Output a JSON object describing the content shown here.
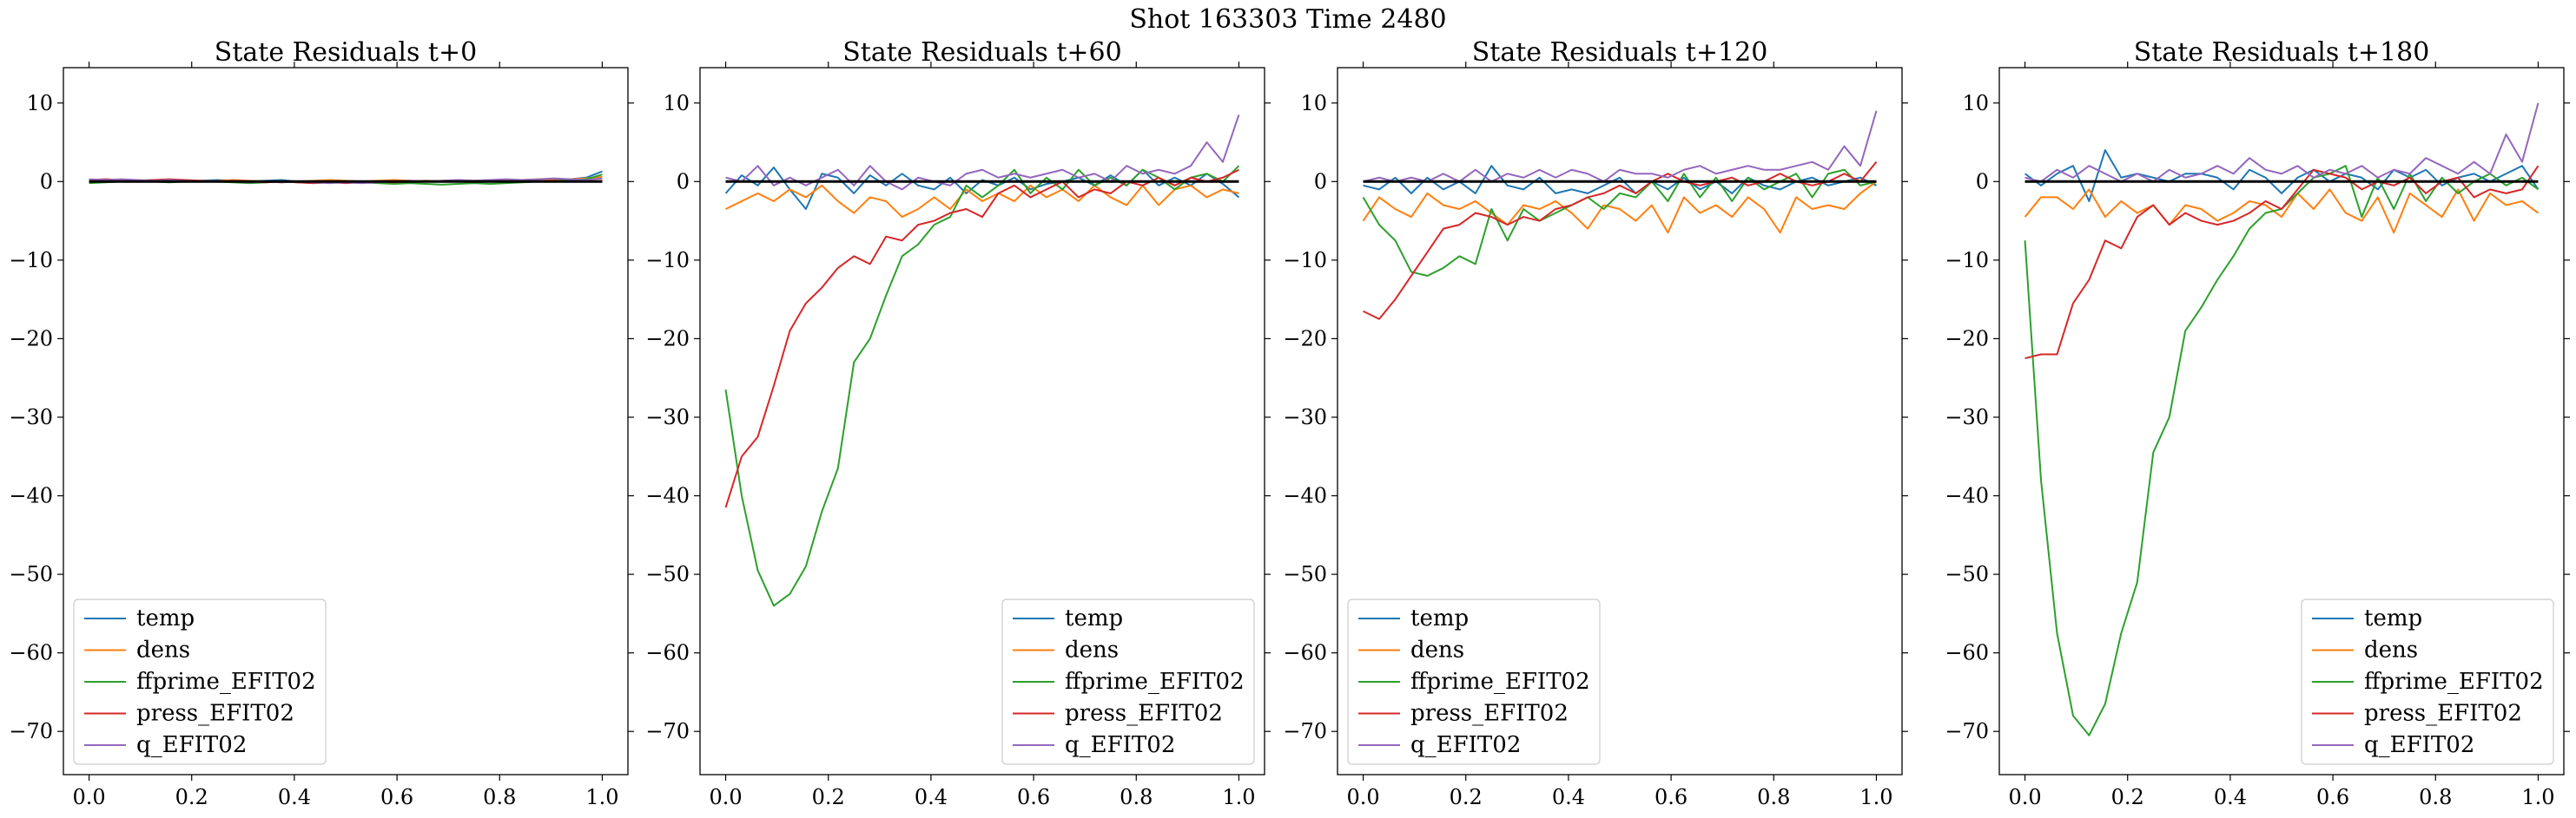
{
  "figure": {
    "suptitle": "Shot 163303   Time 2480"
  },
  "chart_data": [
    {
      "type": "line",
      "title": "State Residuals t+0",
      "xlim": [
        -0.05,
        1.05
      ],
      "ylim": [
        -75.5,
        14.5
      ],
      "xticks": [
        "0.0",
        "0.2",
        "0.4",
        "0.6",
        "0.8",
        "1.0"
      ],
      "yticks": [
        "10",
        "0",
        "−10",
        "−20",
        "−30",
        "−40",
        "−50",
        "−60",
        "−70"
      ],
      "grid": false,
      "legend_position": "lower-left",
      "reference_line": 0,
      "series": [
        {
          "name": "temp",
          "color": "#1f77b4",
          "values": [
            0.1,
            0.0,
            0.2,
            0.1,
            0.2,
            0.1,
            0.0,
            0.1,
            0.2,
            0.1,
            0.0,
            0.1,
            0.2,
            0.0,
            -0.1,
            0.0,
            0.1,
            0.0,
            -0.1,
            0.0,
            0.1,
            0.0,
            0.0,
            0.1,
            0.1,
            0.2,
            0.1,
            0.0,
            0.1,
            0.2,
            0.3,
            0.5,
            1.3
          ]
        },
        {
          "name": "dens",
          "color": "#ff7f0e",
          "values": [
            0.0,
            0.1,
            0.0,
            0.2,
            0.1,
            0.0,
            0.1,
            0.0,
            0.1,
            0.2,
            0.1,
            0.0,
            -0.1,
            0.0,
            0.1,
            0.2,
            0.1,
            0.0,
            0.1,
            0.2,
            0.1,
            0.0,
            0.1,
            0.2,
            0.1,
            0.2,
            0.1,
            0.2,
            0.3,
            0.2,
            0.3,
            0.4,
            0.6
          ]
        },
        {
          "name": "ffprime_EFIT02",
          "color": "#2ca02c",
          "values": [
            -0.2,
            -0.1,
            0.0,
            0.1,
            0.0,
            -0.1,
            0.0,
            0.1,
            0.0,
            -0.1,
            -0.2,
            -0.1,
            0.0,
            -0.1,
            -0.2,
            -0.1,
            0.0,
            -0.1,
            -0.2,
            -0.3,
            -0.2,
            -0.3,
            -0.4,
            -0.3,
            -0.2,
            -0.3,
            -0.2,
            -0.1,
            0.0,
            0.1,
            0.2,
            0.3,
            0.9
          ]
        },
        {
          "name": "press_EFIT02",
          "color": "#d62728",
          "values": [
            0.2,
            0.3,
            0.2,
            0.1,
            0.2,
            0.3,
            0.2,
            0.1,
            0.0,
            0.1,
            0.0,
            -0.1,
            0.0,
            -0.1,
            -0.2,
            -0.1,
            -0.2,
            -0.1,
            0.0,
            -0.1,
            0.0,
            0.1,
            0.0,
            0.1,
            0.0,
            0.1,
            0.0,
            0.1,
            0.0,
            0.1,
            0.0,
            0.0,
            0.1
          ]
        },
        {
          "name": "q_EFIT02",
          "color": "#9467bd",
          "values": [
            0.3,
            0.2,
            0.3,
            0.2,
            0.1,
            0.2,
            0.1,
            0.0,
            0.1,
            0.0,
            -0.1,
            0.0,
            -0.1,
            0.0,
            -0.1,
            -0.2,
            -0.1,
            -0.2,
            -0.1,
            0.0,
            0.1,
            0.0,
            0.1,
            0.2,
            0.1,
            0.2,
            0.3,
            0.2,
            0.3,
            0.4,
            0.3,
            0.2,
            0.4
          ]
        }
      ]
    },
    {
      "type": "line",
      "title": "State Residuals t+60",
      "xlim": [
        -0.05,
        1.05
      ],
      "ylim": [
        -75.5,
        14.5
      ],
      "xticks": [
        "0.0",
        "0.2",
        "0.4",
        "0.6",
        "0.8",
        "1.0"
      ],
      "yticks": [
        "10",
        "0",
        "−10",
        "−20",
        "−30",
        "−40",
        "−50",
        "−60",
        "−70"
      ],
      "grid": false,
      "legend_position": "lower-right",
      "reference_line": 0,
      "series": [
        {
          "name": "temp",
          "color": "#1f77b4",
          "values": [
            -1.5,
            0.8,
            -0.5,
            1.8,
            -1.0,
            -3.5,
            1.0,
            0.5,
            -1.5,
            0.8,
            -0.5,
            1.0,
            -0.5,
            -1.0,
            0.5,
            -1.5,
            0.2,
            -0.5,
            0.5,
            -1.0,
            -0.3,
            0.0,
            0.5,
            -0.5,
            0.8,
            -0.5,
            1.5,
            -0.5,
            0.5,
            -0.5,
            1.0,
            -0.3,
            -2.0
          ]
        },
        {
          "name": "dens",
          "color": "#ff7f0e",
          "values": [
            -3.5,
            -2.5,
            -1.5,
            -2.5,
            -1.0,
            -2.0,
            -0.5,
            -2.5,
            -4.0,
            -2.0,
            -2.5,
            -4.5,
            -3.5,
            -2.0,
            -3.5,
            -1.0,
            -2.5,
            -1.5,
            -2.5,
            -0.5,
            -2.0,
            -1.0,
            -2.5,
            -0.5,
            -2.0,
            -3.0,
            -0.5,
            -3.0,
            -1.0,
            -0.5,
            -2.0,
            -1.0,
            -1.5
          ]
        },
        {
          "name": "ffprime_EFIT02",
          "color": "#2ca02c",
          "values": [
            -26.5,
            -40.0,
            -49.5,
            -54.0,
            -52.5,
            -49.0,
            -42.0,
            -36.5,
            -23.0,
            -20.0,
            -14.5,
            -9.5,
            -8.0,
            -5.5,
            -4.5,
            -0.5,
            -2.0,
            -0.5,
            1.5,
            -1.5,
            0.5,
            -1.0,
            1.5,
            -0.5,
            0.5,
            -0.5,
            1.5,
            0.5,
            -1.0,
            0.5,
            1.0,
            0.0,
            2.0
          ]
        },
        {
          "name": "press_EFIT02",
          "color": "#d62728",
          "values": [
            -41.5,
            -35.0,
            -32.5,
            -26.0,
            -19.0,
            -15.5,
            -13.5,
            -11.0,
            -9.5,
            -10.5,
            -7.0,
            -7.5,
            -5.5,
            -5.0,
            -4.0,
            -3.5,
            -4.5,
            -1.5,
            -0.5,
            -2.0,
            -1.0,
            0.0,
            -2.0,
            -1.0,
            -1.5,
            0.0,
            -0.5,
            0.5,
            -0.5,
            0.5,
            0.0,
            0.5,
            1.5
          ]
        },
        {
          "name": "q_EFIT02",
          "color": "#9467bd",
          "values": [
            0.5,
            0.0,
            2.0,
            -0.5,
            0.5,
            -0.5,
            0.5,
            1.5,
            -0.5,
            2.0,
            0.0,
            -1.0,
            0.5,
            0.0,
            -0.5,
            1.0,
            1.5,
            0.5,
            1.0,
            0.5,
            1.0,
            1.5,
            0.5,
            1.0,
            0.0,
            2.0,
            1.0,
            1.5,
            1.0,
            2.0,
            5.0,
            2.5,
            8.5
          ]
        }
      ]
    },
    {
      "type": "line",
      "title": "State Residuals t+120",
      "xlim": [
        -0.05,
        1.05
      ],
      "ylim": [
        -75.5,
        14.5
      ],
      "xticks": [
        "0.0",
        "0.2",
        "0.4",
        "0.6",
        "0.8",
        "1.0"
      ],
      "yticks": [
        "10",
        "0",
        "−10",
        "−20",
        "−30",
        "−40",
        "−50",
        "−60",
        "−70"
      ],
      "grid": false,
      "legend_position": "lower-left",
      "reference_line": 0,
      "series": [
        {
          "name": "temp",
          "color": "#1f77b4",
          "values": [
            -0.5,
            -1.0,
            0.5,
            -1.5,
            0.5,
            -1.0,
            0.0,
            -1.5,
            2.0,
            -0.5,
            -1.0,
            0.5,
            -1.5,
            -1.0,
            -1.5,
            -0.5,
            0.5,
            -1.5,
            0.0,
            -1.0,
            0.5,
            -1.0,
            0.0,
            -1.5,
            0.5,
            -0.5,
            -1.0,
            0.0,
            0.5,
            -0.5,
            0.0,
            0.5,
            -0.5
          ]
        },
        {
          "name": "dens",
          "color": "#ff7f0e",
          "values": [
            -5.0,
            -2.0,
            -3.5,
            -4.5,
            -1.5,
            -3.0,
            -3.5,
            -2.5,
            -4.0,
            -5.5,
            -3.0,
            -3.5,
            -2.5,
            -4.0,
            -6.0,
            -3.0,
            -3.5,
            -5.0,
            -3.0,
            -6.5,
            -2.0,
            -4.0,
            -3.0,
            -4.5,
            -2.0,
            -3.5,
            -6.5,
            -2.0,
            -3.5,
            -3.0,
            -3.5,
            -1.5,
            0.0
          ]
        },
        {
          "name": "ffprime_EFIT02",
          "color": "#2ca02c",
          "values": [
            -2.0,
            -5.5,
            -7.5,
            -11.5,
            -12.0,
            -11.0,
            -9.5,
            -10.5,
            -3.5,
            -7.5,
            -3.5,
            -5.0,
            -4.0,
            -3.0,
            -2.0,
            -3.5,
            -1.5,
            -2.0,
            0.0,
            -2.5,
            1.0,
            -2.0,
            0.5,
            -2.5,
            0.5,
            -1.0,
            0.0,
            1.0,
            -2.0,
            1.0,
            1.5,
            -0.5,
            0.0
          ]
        },
        {
          "name": "press_EFIT02",
          "color": "#d62728",
          "values": [
            -16.5,
            -17.5,
            -15.0,
            -12.0,
            -9.0,
            -6.0,
            -5.5,
            -4.0,
            -4.5,
            -5.5,
            -4.5,
            -5.0,
            -3.5,
            -3.0,
            -2.0,
            -1.5,
            -0.5,
            -1.5,
            0.0,
            1.0,
            0.0,
            -0.5,
            0.0,
            0.5,
            -0.5,
            0.0,
            1.0,
            0.0,
            -0.5,
            0.0,
            1.0,
            0.0,
            2.5
          ]
        },
        {
          "name": "q_EFIT02",
          "color": "#9467bd",
          "values": [
            0.0,
            0.5,
            0.0,
            0.5,
            0.0,
            1.0,
            0.0,
            1.5,
            0.0,
            1.0,
            0.5,
            1.5,
            0.5,
            1.5,
            1.0,
            0.0,
            1.5,
            1.0,
            1.0,
            0.5,
            1.5,
            2.0,
            1.0,
            1.5,
            2.0,
            1.5,
            1.5,
            2.0,
            2.5,
            1.5,
            4.5,
            2.0,
            9.0
          ]
        }
      ]
    },
    {
      "type": "line",
      "title": "State Residuals t+180",
      "xlim": [
        -0.05,
        1.05
      ],
      "ylim": [
        -75.5,
        14.5
      ],
      "xticks": [
        "0.0",
        "0.2",
        "0.4",
        "0.6",
        "0.8",
        "1.0"
      ],
      "yticks": [
        "10",
        "0",
        "−10",
        "−20",
        "−30",
        "−40",
        "−50",
        "−60",
        "−70"
      ],
      "grid": false,
      "legend_position": "lower-right",
      "reference_line": 0,
      "series": [
        {
          "name": "temp",
          "color": "#1f77b4",
          "values": [
            1.0,
            -0.5,
            1.0,
            2.0,
            -2.5,
            4.0,
            0.5,
            1.0,
            0.5,
            0.0,
            1.0,
            1.0,
            0.5,
            -1.0,
            1.5,
            0.5,
            -1.5,
            0.5,
            1.5,
            0.0,
            1.0,
            0.5,
            -1.0,
            1.5,
            0.5,
            1.5,
            -0.5,
            0.5,
            1.0,
            0.0,
            1.0,
            2.0,
            -1.0
          ]
        },
        {
          "name": "dens",
          "color": "#ff7f0e",
          "values": [
            -4.5,
            -2.0,
            -2.0,
            -3.5,
            -1.0,
            -4.5,
            -2.5,
            -4.0,
            -3.0,
            -5.5,
            -3.0,
            -3.5,
            -5.0,
            -4.0,
            -2.5,
            -3.0,
            -4.5,
            -1.5,
            -3.5,
            -1.0,
            -4.0,
            -5.0,
            -2.0,
            -6.5,
            -1.5,
            -3.0,
            -4.5,
            -1.0,
            -5.0,
            -1.5,
            -3.0,
            -2.5,
            -4.0
          ]
        },
        {
          "name": "ffprime_EFIT02",
          "color": "#2ca02c",
          "values": [
            -7.5,
            -38.0,
            -57.5,
            -68.0,
            -70.5,
            -66.5,
            -57.5,
            -51.0,
            -34.5,
            -30.0,
            -19.0,
            -16.0,
            -12.5,
            -9.5,
            -6.0,
            -4.0,
            -3.5,
            -1.5,
            0.5,
            1.0,
            2.0,
            -4.5,
            0.5,
            -3.5,
            1.0,
            -2.5,
            0.5,
            -1.5,
            0.0,
            1.0,
            -0.5,
            0.5,
            -1.0
          ]
        },
        {
          "name": "press_EFIT02",
          "color": "#d62728",
          "values": [
            -22.5,
            -22.0,
            -22.0,
            -15.5,
            -12.5,
            -7.5,
            -8.5,
            -4.5,
            -3.0,
            -5.5,
            -4.0,
            -5.0,
            -5.5,
            -5.0,
            -4.0,
            -2.5,
            -3.5,
            -1.0,
            1.5,
            1.0,
            0.5,
            -1.0,
            0.0,
            -0.5,
            0.5,
            -1.5,
            0.0,
            0.5,
            -2.0,
            -1.0,
            -1.5,
            -1.0,
            2.0
          ]
        },
        {
          "name": "q_EFIT02",
          "color": "#9467bd",
          "values": [
            0.5,
            0.0,
            1.5,
            0.5,
            2.0,
            1.0,
            0.0,
            1.0,
            0.0,
            1.5,
            0.5,
            1.0,
            2.0,
            1.0,
            3.0,
            1.5,
            1.0,
            2.0,
            0.5,
            1.5,
            1.0,
            2.0,
            0.5,
            1.5,
            1.0,
            3.0,
            2.0,
            1.0,
            2.5,
            1.0,
            6.0,
            2.5,
            10.0
          ]
        }
      ]
    }
  ]
}
